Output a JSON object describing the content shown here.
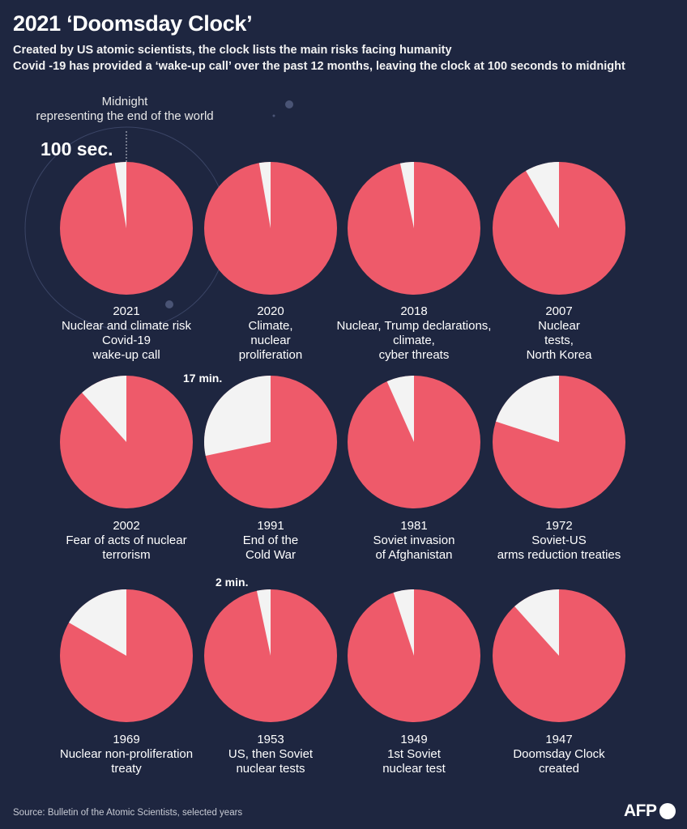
{
  "header": {
    "title": "2021 ‘Doomsday Clock’",
    "subtitle_1": "Created by US atomic scientists, the clock lists the main risks facing humanity",
    "subtitle_2": "Covid -19 has provided a ‘wake-up call’ over the past 12 months, leaving the clock at 100 seconds to midnight"
  },
  "annotations": {
    "midnight_1": "Midnight",
    "midnight_2": "representing the end of the world",
    "hundred_sec": "100 sec.",
    "seventeen_min": "17 min.",
    "two_min": "2 min."
  },
  "colors": {
    "background": "#1e2640",
    "clock": "#ee5a6a",
    "remaining": "#f3f3f3"
  },
  "chart_data": {
    "type": "pie",
    "unit": "minutes to midnight",
    "clocks": [
      {
        "year": "2021",
        "minutes_to_midnight": 1.667,
        "label_lines": [
          "Nuclear and climate risk",
          "Covid-19",
          "wake-up call"
        ]
      },
      {
        "year": "2020",
        "minutes_to_midnight": 1.667,
        "label_lines": [
          "Climate,",
          "nuclear",
          "proliferation"
        ]
      },
      {
        "year": "2018",
        "minutes_to_midnight": 2,
        "label_lines": [
          "Nuclear, Trump declarations,",
          "climate,",
          "cyber threats"
        ]
      },
      {
        "year": "2007",
        "minutes_to_midnight": 5,
        "label_lines": [
          "Nuclear",
          "tests,",
          "North Korea"
        ]
      },
      {
        "year": "2002",
        "minutes_to_midnight": 7,
        "label_lines": [
          "Fear of acts of nuclear",
          "terrorism"
        ]
      },
      {
        "year": "1991",
        "minutes_to_midnight": 17,
        "label_lines": [
          "End of the",
          "Cold War"
        ]
      },
      {
        "year": "1981",
        "minutes_to_midnight": 4,
        "label_lines": [
          "Soviet invasion",
          "of Afghanistan"
        ]
      },
      {
        "year": "1972",
        "minutes_to_midnight": 12,
        "label_lines": [
          "Soviet-US",
          "arms reduction treaties"
        ]
      },
      {
        "year": "1969",
        "minutes_to_midnight": 10,
        "label_lines": [
          "Nuclear non-proliferation",
          "treaty"
        ]
      },
      {
        "year": "1953",
        "minutes_to_midnight": 2,
        "label_lines": [
          "US, then Soviet",
          "nuclear tests"
        ]
      },
      {
        "year": "1949",
        "minutes_to_midnight": 3,
        "label_lines": [
          "1st Soviet",
          "nuclear test"
        ]
      },
      {
        "year": "1947",
        "minutes_to_midnight": 7,
        "label_lines": [
          "Doomsday Clock",
          "created"
        ]
      }
    ]
  },
  "footer": {
    "source": "Source: Bulletin of the Atomic Scientists, selected years",
    "logo": "AFP"
  }
}
